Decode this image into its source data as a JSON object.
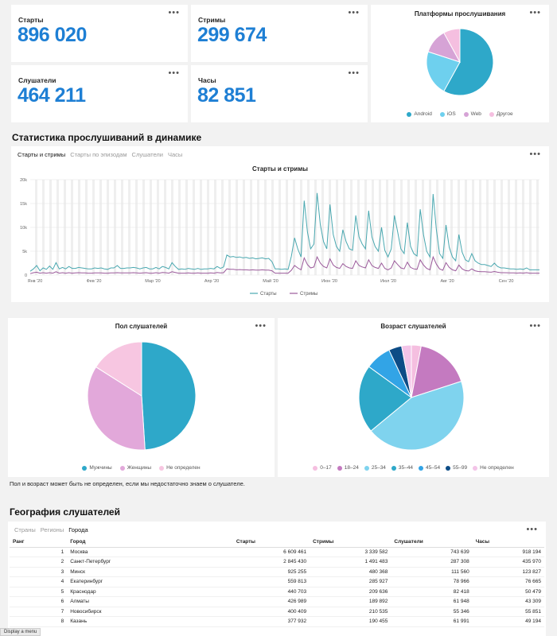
{
  "metrics": [
    {
      "label": "Старты",
      "value": "896 020"
    },
    {
      "label": "Стримы",
      "value": "299 674"
    },
    {
      "label": "Слушатели",
      "value": "464 211"
    },
    {
      "label": "Часы",
      "value": "82 851"
    }
  ],
  "menu_glyph": "•••",
  "platforms": {
    "title": "Платформы прослушивания",
    "chart_data": {
      "type": "pie",
      "title": "Платформы прослушивания",
      "categories": [
        "Android",
        "iOS",
        "Web",
        "Другое"
      ],
      "values": [
        58,
        22,
        12,
        8
      ],
      "colors": [
        "#2ea8c9",
        "#6ed0ee",
        "#d6a3d6",
        "#f5bfe0"
      ],
      "legend": "bottom"
    }
  },
  "dynamics": {
    "section_title": "Статистика прослушиваний в динамике",
    "tabs": [
      "Старты и стримы",
      "Старты по эпизодам",
      "Слушатели",
      "Часы"
    ],
    "active_tab": 0,
    "chart_data": {
      "type": "line",
      "title": "Старты и стримы",
      "y_ticks": [
        "20k",
        "15k",
        "10k",
        "5k",
        "0"
      ],
      "ylim": [
        0,
        20000
      ],
      "x_ticks": [
        "Янв '20",
        "Фев '20",
        "Мар '20",
        "Апр '20",
        "Май '20",
        "Июн '20",
        "Июл '20",
        "Авг '20",
        "Сен '20"
      ],
      "series": [
        {
          "name": "Старты",
          "color": "#4aa8b0",
          "values": [
            800,
            1300,
            2000,
            900,
            1500,
            1200,
            1900,
            1200,
            2600,
            1300,
            1600,
            1300,
            1800,
            1400,
            1400,
            1600,
            1500,
            1400,
            1300,
            1300,
            1500,
            1400,
            1500,
            1300,
            1200,
            1500,
            1500,
            2000,
            1400,
            1400,
            1500,
            1500,
            1600,
            1500,
            1300,
            1500,
            1600,
            1300,
            1300,
            1600,
            1300,
            1800,
            1600,
            1300,
            2600,
            1800,
            1200,
            1300,
            1200,
            1400,
            1300,
            1200,
            1400,
            1200,
            1300,
            1300,
            1400,
            1300,
            1800,
            1400,
            1700,
            4200,
            3800,
            3900,
            3700,
            3800,
            3600,
            3700,
            3500,
            3600,
            3400,
            3500,
            3600,
            3400,
            3500,
            2800,
            1300,
            1300,
            1200,
            1300,
            1200,
            3900,
            7800,
            5500,
            3800,
            15600,
            9000,
            5500,
            6500,
            17200,
            10500,
            7000,
            5500,
            14800,
            8500,
            6000,
            5000,
            9500,
            7000,
            5500,
            5200,
            12500,
            8000,
            6500,
            5500,
            13500,
            8000,
            6000,
            5000,
            10000,
            5200,
            3800,
            5500,
            12500,
            9000,
            5500,
            4500,
            11000,
            6000,
            4500,
            4000,
            13800,
            8500,
            5000,
            3800,
            17000,
            9500,
            4500,
            3500,
            10500,
            5800,
            3800,
            3000,
            8500,
            4800,
            3200,
            2800,
            4500,
            3000,
            2500,
            2200,
            2200,
            2000,
            1800,
            2500,
            1800,
            1500,
            1500,
            1400,
            1300,
            1300,
            1200,
            1300,
            1200,
            1500,
            1100,
            1100,
            1100,
            1100
          ]
        },
        {
          "name": "Стримы",
          "color": "#9b5a9b",
          "values": [
            300,
            500,
            600,
            400,
            500,
            400,
            500,
            400,
            700,
            400,
            500,
            400,
            500,
            400,
            450,
            500,
            450,
            450,
            400,
            400,
            450,
            450,
            450,
            400,
            400,
            450,
            450,
            500,
            450,
            450,
            450,
            450,
            500,
            450,
            400,
            450,
            500,
            400,
            400,
            500,
            400,
            550,
            500,
            400,
            700,
            550,
            400,
            400,
            400,
            450,
            400,
            400,
            450,
            400,
            400,
            400,
            450,
            400,
            550,
            450,
            500,
            1300,
            1200,
            1200,
            1100,
            1150,
            1100,
            1100,
            1050,
            1100,
            1050,
            1050,
            1100,
            1050,
            1050,
            900,
            400,
            400,
            400,
            400,
            400,
            1000,
            2000,
            1500,
            1100,
            3600,
            2200,
            1500,
            1700,
            3800,
            2500,
            1800,
            1500,
            3400,
            2100,
            1600,
            1400,
            2400,
            1800,
            1500,
            1400,
            3000,
            2000,
            1700,
            1500,
            3200,
            2000,
            1600,
            1400,
            2500,
            1400,
            1100,
            1500,
            3000,
            2200,
            1500,
            1300,
            2700,
            1600,
            1300,
            1200,
            3200,
            2100,
            1400,
            1100,
            3800,
            2300,
            1300,
            1000,
            2600,
            1600,
            1100,
            900,
            2100,
            1300,
            950,
            850,
            1300,
            900,
            750,
            700,
            700,
            650,
            600,
            750,
            600,
            500,
            500,
            480,
            450,
            450,
            420,
            450,
            420,
            500,
            400,
            400,
            400,
            400
          ]
        }
      ],
      "legend": "bottom"
    }
  },
  "gender": {
    "title": "Пол слушателей",
    "chart_data": {
      "type": "pie",
      "title": "Пол слушателей",
      "categories": [
        "Мужчины",
        "Женщины",
        "Не определен"
      ],
      "values": [
        49,
        35,
        16
      ],
      "colors": [
        "#2ea8c9",
        "#e2a8da",
        "#f7c6e1"
      ],
      "legend": "bottom"
    }
  },
  "age": {
    "title": "Возраст слушателей",
    "chart_data": {
      "type": "pie",
      "title": "Возраст слушателей",
      "categories": [
        "0–17",
        "18–24",
        "25–34",
        "35–44",
        "45–54",
        "55–99",
        "Не определен"
      ],
      "values": [
        3,
        17,
        44,
        21,
        8,
        4,
        3
      ],
      "colors": [
        "#f5bfe0",
        "#c47ac0",
        "#7fd3ee",
        "#2ea8c9",
        "#32a4e6",
        "#0d4c86",
        "#f3c4e8"
      ],
      "legend": "bottom"
    }
  },
  "note": "Пол и возраст может быть не определен, если мы недостаточно знаем о слушателе.",
  "geo": {
    "section_title": "География слушателей",
    "tabs": [
      "Страны",
      "Регионы",
      "Города"
    ],
    "active_tab": 2,
    "columns": [
      "Ранг",
      "Город",
      "Старты",
      "Стримы",
      "Слушатели",
      "Часы"
    ],
    "rows": [
      [
        "1",
        "Москва",
        "6 609 461",
        "3 339 582",
        "743 639",
        "918 194"
      ],
      [
        "2",
        "Санкт-Петербург",
        "2 845 430",
        "1 491 483",
        "287 308",
        "435 970"
      ],
      [
        "3",
        "Минск",
        "925 255",
        "480 368",
        "111 560",
        "123 827"
      ],
      [
        "4",
        "Екатеринбург",
        "559 813",
        "285 927",
        "78 966",
        "76 665"
      ],
      [
        "5",
        "Краснодар",
        "440 703",
        "209 636",
        "82 418",
        "50 479"
      ],
      [
        "6",
        "Алматы",
        "426 989",
        "189 892",
        "61 948",
        "43 309"
      ],
      [
        "7",
        "Новосибирск",
        "400 409",
        "210 535",
        "55 346",
        "55 851"
      ],
      [
        "8",
        "Казань",
        "377 932",
        "190 455",
        "61 991",
        "49 194"
      ]
    ]
  },
  "status_bar": "Display a menu"
}
